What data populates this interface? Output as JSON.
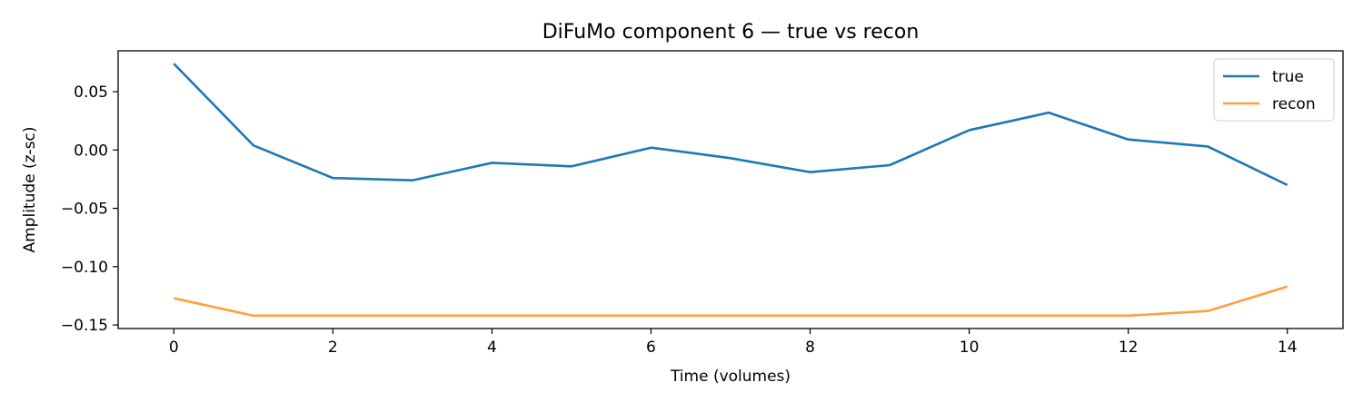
{
  "chart_data": {
    "type": "line",
    "title": "DiFuMo component 6 — true vs recon",
    "xlabel": "Time (volumes)",
    "ylabel": "Amplitude (z-sc)",
    "xlim": [
      -0.7,
      14.7
    ],
    "ylim": [
      -0.153,
      0.085
    ],
    "x": [
      0,
      1,
      2,
      3,
      4,
      5,
      6,
      7,
      8,
      9,
      10,
      11,
      12,
      13,
      14
    ],
    "x_ticks": [
      {
        "value": 0,
        "label": "0"
      },
      {
        "value": 2,
        "label": "2"
      },
      {
        "value": 4,
        "label": "4"
      },
      {
        "value": 6,
        "label": "6"
      },
      {
        "value": 8,
        "label": "8"
      },
      {
        "value": 10,
        "label": "10"
      },
      {
        "value": 12,
        "label": "12"
      },
      {
        "value": 14,
        "label": "14"
      }
    ],
    "y_ticks": [
      {
        "value": 0.05,
        "label": "0.05"
      },
      {
        "value": 0.0,
        "label": "0.00"
      },
      {
        "value": -0.05,
        "label": "−0.05"
      },
      {
        "value": -0.1,
        "label": "−0.10"
      },
      {
        "value": -0.15,
        "label": "−0.15"
      }
    ],
    "grid": false,
    "legend_position": "top-right",
    "series": [
      {
        "name": "true",
        "color": "#1f77b4",
        "values": [
          0.074,
          0.004,
          -0.024,
          -0.026,
          -0.011,
          -0.014,
          0.002,
          -0.007,
          -0.019,
          -0.013,
          0.017,
          0.032,
          0.009,
          0.003,
          -0.03
        ]
      },
      {
        "name": "recon",
        "color": "#ff9f40",
        "values": [
          -0.127,
          -0.142,
          -0.142,
          -0.142,
          -0.142,
          -0.142,
          -0.142,
          -0.142,
          -0.142,
          -0.142,
          -0.142,
          -0.142,
          -0.142,
          -0.138,
          -0.117
        ]
      }
    ]
  }
}
